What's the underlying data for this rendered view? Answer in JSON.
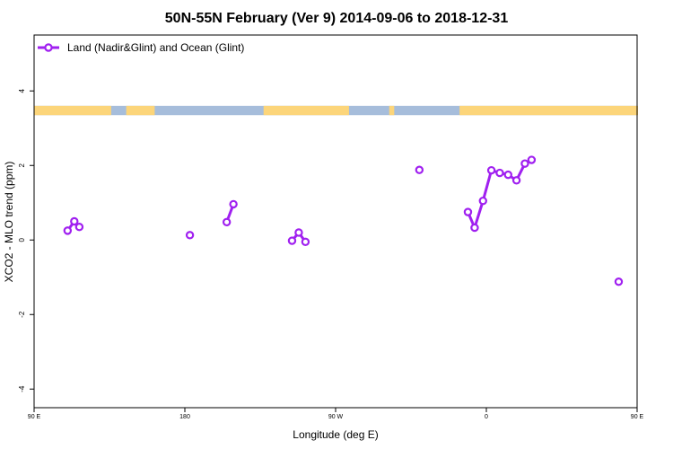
{
  "chart_data": {
    "type": "line",
    "title": "50N-55N February (Ver 9)   2014-09-06 to 2018-12-31",
    "xlabel": "Longitude (deg E)",
    "ylabel": "XCO2 - MLO trend (ppm)",
    "xlim": [
      90,
      450
    ],
    "ylim": [
      -4.5,
      5.5
    ],
    "x_ticks": [
      {
        "value": 90,
        "label": "90 E"
      },
      {
        "value": 180,
        "label": "180"
      },
      {
        "value": 270,
        "label": "90 W"
      },
      {
        "value": 360,
        "label": "0"
      },
      {
        "value": 450,
        "label": "90 E"
      },
      {
        "value": 540,
        "label": "180"
      }
    ],
    "y_ticks": [
      {
        "value": -4,
        "label": "-4"
      },
      {
        "value": -2,
        "label": "-2"
      },
      {
        "value": 0,
        "label": "0"
      },
      {
        "value": 2,
        "label": "2"
      },
      {
        "value": 4,
        "label": "4"
      }
    ],
    "legend": {
      "placement": "top-left"
    },
    "series": [
      {
        "name": "Land (Nadir&Glint) and Ocean (Glint)",
        "color": "#a020f0",
        "segments": [
          [
            [
              110,
              0.25
            ],
            [
              114,
              0.5
            ],
            [
              117,
              0.35
            ]
          ],
          [
            [
              183,
              0.13
            ]
          ],
          [
            [
              205,
              0.48
            ],
            [
              209,
              0.96
            ]
          ],
          [
            [
              244,
              -0.02
            ],
            [
              248,
              0.2
            ],
            [
              252,
              -0.05
            ]
          ],
          [
            [
              320,
              1.88
            ]
          ],
          [
            [
              349,
              0.75
            ],
            [
              353,
              0.33
            ],
            [
              358,
              1.05
            ],
            [
              363,
              1.87
            ],
            [
              368,
              1.8
            ],
            [
              373,
              1.75
            ],
            [
              378,
              1.6
            ],
            [
              383,
              2.05
            ],
            [
              387,
              2.15
            ]
          ],
          [
            [
              439,
              -1.12
            ]
          ],
          [
            [
              470,
              0.25
            ],
            [
              474,
              0.52
            ],
            [
              477,
              0.35
            ]
          ]
        ]
      }
    ],
    "land_ocean_strip": {
      "y_range": [
        3.35,
        3.6
      ],
      "ocean_color": "#a6bddb",
      "land_color": "#fcd57a",
      "land_segments": [
        [
          90,
          136
        ],
        [
          145,
          162
        ],
        [
          227,
          278
        ],
        [
          302,
          305
        ],
        [
          344,
          452
        ],
        [
          456,
          463
        ],
        [
          468,
          474
        ],
        [
          542,
          562
        ]
      ]
    }
  }
}
